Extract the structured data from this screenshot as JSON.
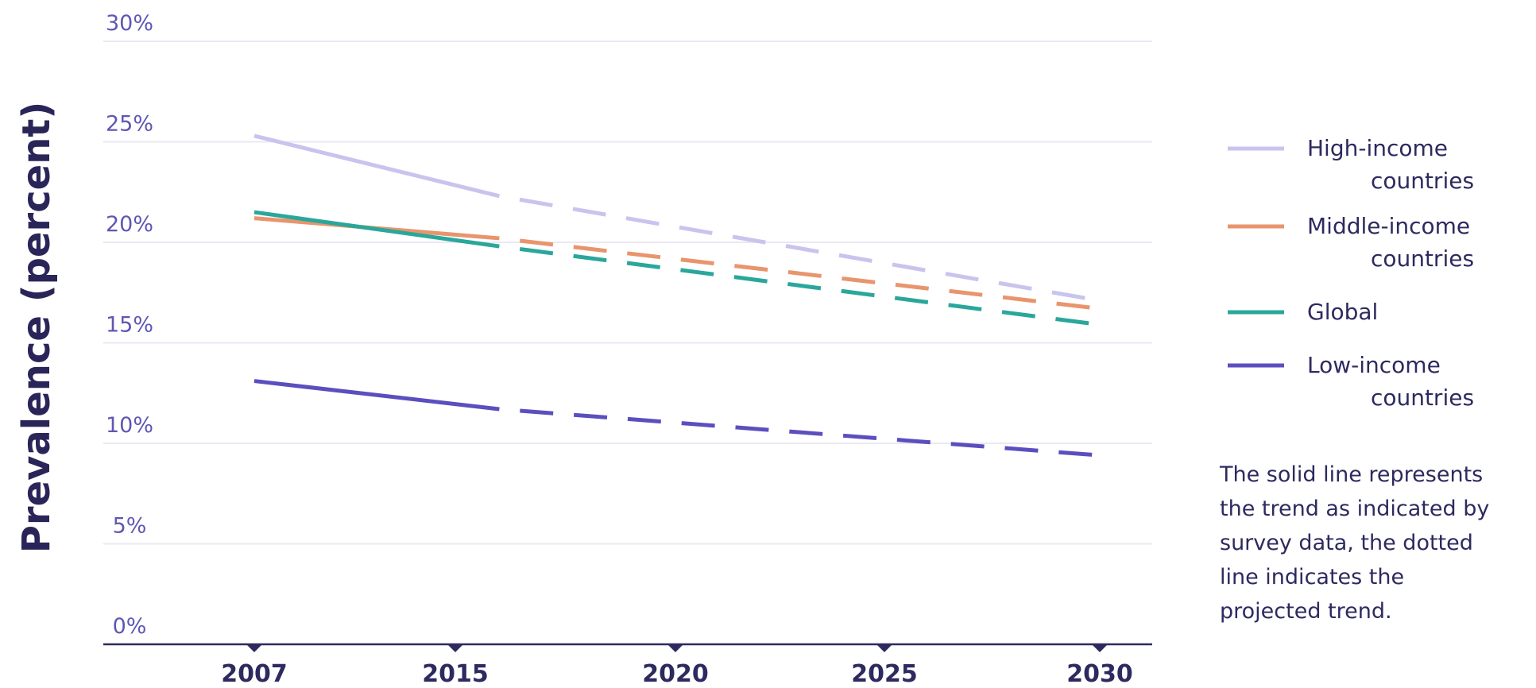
{
  "chart_data": {
    "type": "line",
    "ylabel": "Prevalence (percent)",
    "xlabel": "",
    "x": [
      "2007",
      "2015",
      "2020",
      "2025",
      "2030"
    ],
    "y_ticks": [
      "0%",
      "5%",
      "10%",
      "15%",
      "20%",
      "25%",
      "30%"
    ],
    "ylim": [
      0,
      30
    ],
    "grid": true,
    "legend_position": "right",
    "series": [
      {
        "name": "High-income countries",
        "color": "#c9c4ee",
        "solid": [
          [
            2007,
            25.3
          ],
          [
            2016,
            22.3
          ]
        ],
        "projected": [
          [
            2016,
            22.3
          ],
          [
            2030,
            17.1
          ]
        ]
      },
      {
        "name": "Middle-income countries",
        "color": "#e8956d",
        "solid": [
          [
            2007,
            21.2
          ],
          [
            2016,
            20.2
          ]
        ],
        "projected": [
          [
            2016,
            20.2
          ],
          [
            2030,
            16.7
          ]
        ]
      },
      {
        "name": "Global",
        "color": "#2aa79b",
        "solid": [
          [
            2007,
            21.5
          ],
          [
            2016,
            19.8
          ]
        ],
        "projected": [
          [
            2016,
            19.8
          ],
          [
            2030,
            15.9
          ]
        ]
      },
      {
        "name": "Low-income countries",
        "color": "#5b4fbf",
        "solid": [
          [
            2007,
            13.1
          ],
          [
            2016,
            11.7
          ]
        ],
        "projected": [
          [
            2016,
            11.7
          ],
          [
            2030,
            9.4
          ]
        ]
      }
    ],
    "legend": [
      {
        "name": "High-income",
        "name2": "countries",
        "color": "#c9c4ee"
      },
      {
        "name": "Middle-income",
        "name2": "countries",
        "color": "#e8956d"
      },
      {
        "name": "Global",
        "name2": "",
        "color": "#2aa79b"
      },
      {
        "name": "Low-income",
        "name2": "countries",
        "color": "#5b4fbf"
      }
    ],
    "note": [
      "The solid line represents",
      "the trend as indicated by",
      "survey data, the dotted",
      "line indicates the",
      "projected trend."
    ]
  }
}
